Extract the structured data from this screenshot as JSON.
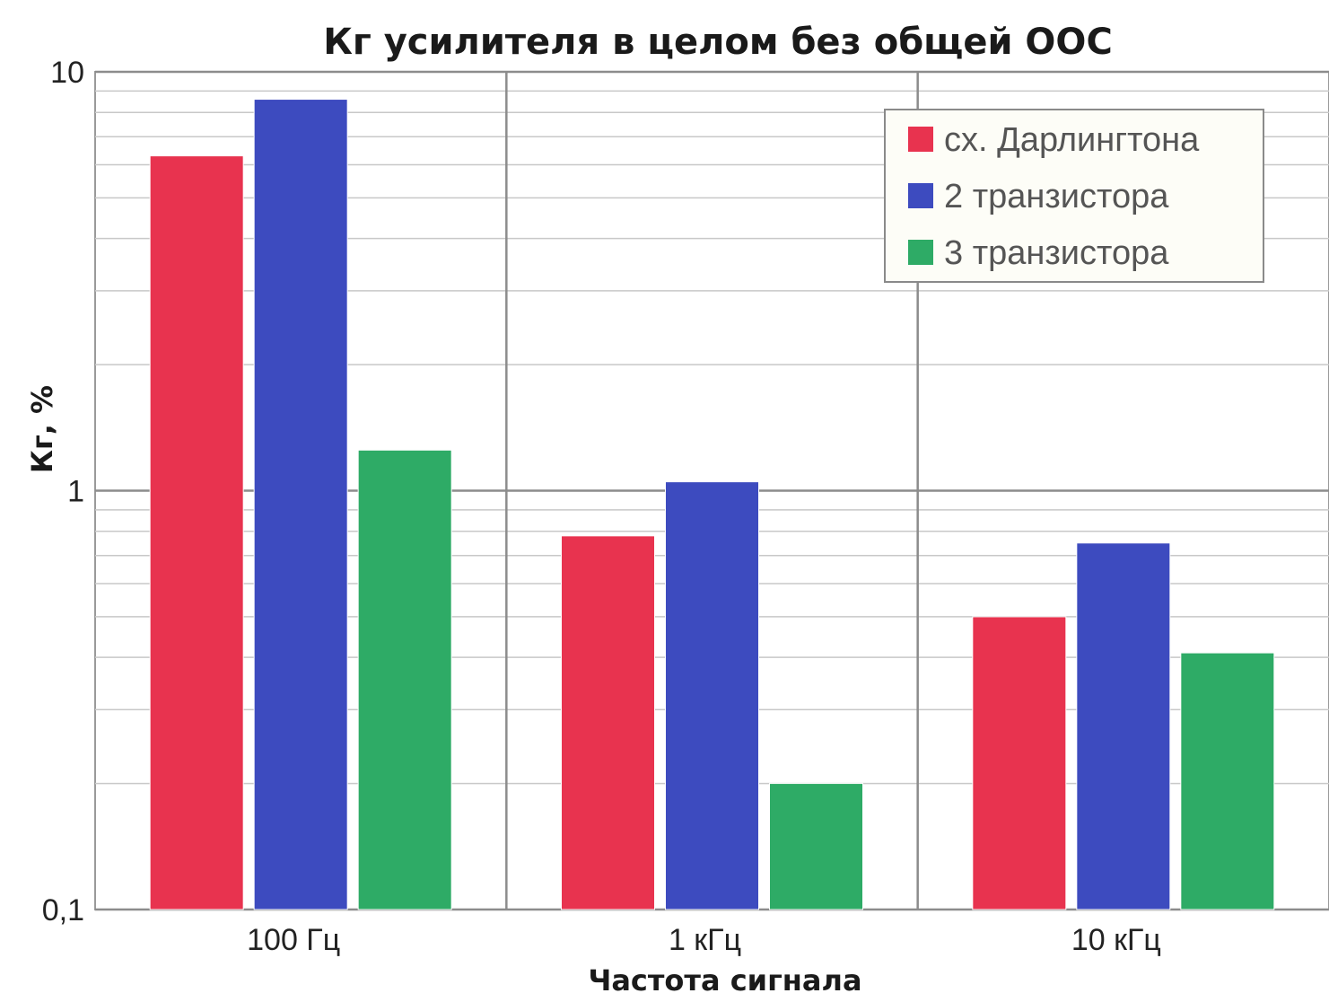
{
  "chart_data": {
    "type": "bar",
    "title": "Кг усилителя в целом без общей ООС",
    "xlabel": "Частота сигнала",
    "ylabel": "Кг, %",
    "yscale": "log",
    "ylim": [
      0.1,
      10
    ],
    "yticks": [
      {
        "value": 0.1,
        "label": "0,1"
      },
      {
        "value": 1,
        "label": "1"
      },
      {
        "value": 10,
        "label": "10"
      }
    ],
    "categories": [
      "100 Гц",
      "1 кГц",
      "10 кГц"
    ],
    "series": [
      {
        "name": "сх. Дарлингтона",
        "color": "#e8334f",
        "values": [
          6.3,
          0.78,
          0.5
        ]
      },
      {
        "name": "2 транзистора",
        "color": "#3d4bbf",
        "values": [
          8.6,
          1.05,
          0.75
        ]
      },
      {
        "name": "3 транзистора",
        "color": "#2eab66",
        "values": [
          1.25,
          0.2,
          0.41
        ]
      }
    ],
    "grid": true,
    "legend_position": "top-right"
  }
}
